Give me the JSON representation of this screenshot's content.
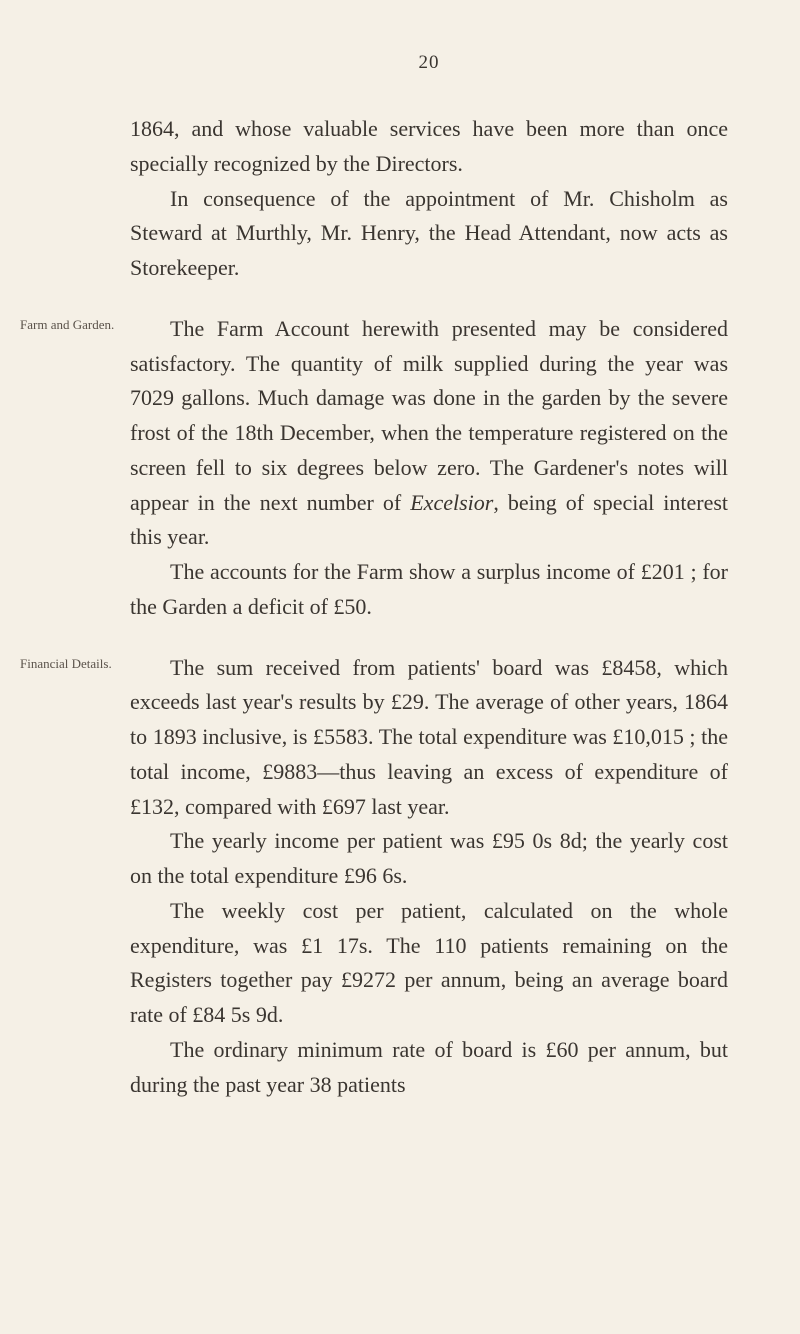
{
  "pageNumber": "20",
  "paragraphs": {
    "p1": "1864, and whose valuable services have been more than once specially recognized by the Directors.",
    "p2": "In consequence of the appointment of Mr. Chisholm as Steward at Murthly, Mr. Henry, the Head Attendant, now acts as Storekeeper.",
    "p3a": "The Farm Account herewith presented may be considered satisfactory. The quantity of milk supplied during the year was 7029 gallons. Much damage was done in the garden by the severe frost of the 18th December, when the temperature registered on the screen fell to six degrees below zero. The Gardener's notes will appear in the next number of ",
    "p3italic": "Excelsior",
    "p3b": ", being of special interest this year.",
    "p4": "The accounts for the Farm show a surplus income of £201 ; for the Garden a deficit of £50.",
    "p5": "The sum received from patients' board was £8458, which exceeds last year's results by £29. The average of other years, 1864 to 1893 in­clusive, is £5583. The total expenditure was £10,015 ; the total income, £9883—thus leaving an excess of expenditure of £132, compared with £697 last year.",
    "p6": "The yearly income per patient was £95 0s 8d; the yearly cost on the total expenditure £96 6s.",
    "p7": "The weekly cost per patient, calculated on the whole expenditure, was £1 17s. The 110 patients remaining on the Registers together pay £9272 per annum, being an average board rate of £84 5s 9d.",
    "p8": "The ordinary minimum rate of board is £60 per annum, but during the past year 38 patients"
  },
  "marginNotes": {
    "note1": "Farm and Garden.",
    "note2": "Financial Details."
  },
  "styling": {
    "backgroundColor": "#f5f0e6",
    "textColor": "#3a3530",
    "marginNoteColor": "#5a524a",
    "bodyFontSize": 22,
    "marginNoteFontSize": 13,
    "pageNumberFontSize": 19,
    "lineHeight": 1.58
  }
}
